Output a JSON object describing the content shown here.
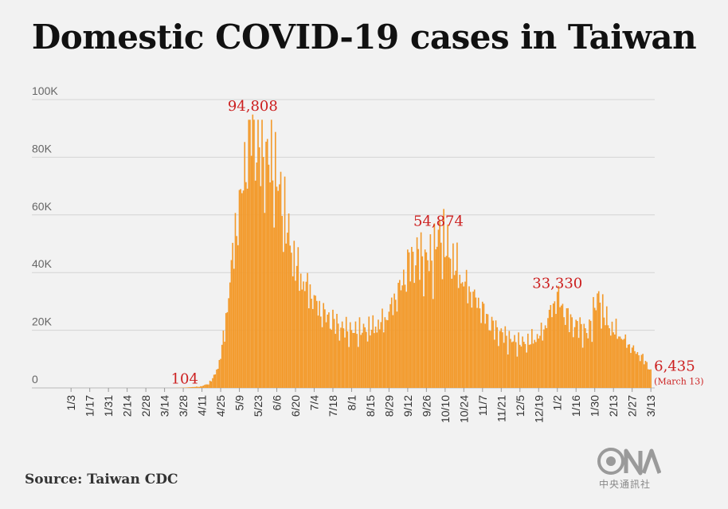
{
  "title": "Domestic COVID-19 cases in Taiwan",
  "source": "Source: Taiwan CDC",
  "logo_caption": "中央通訊社",
  "colors": {
    "bar": "#f39a2b",
    "annotation": "#cc1f1f",
    "grid": "#d4d4d4",
    "axis_text": "#666666",
    "background": "#f2f2f2"
  },
  "chart_data": {
    "type": "bar",
    "title": "Domestic COVID-19 cases in Taiwan",
    "xlabel": "",
    "ylabel": "",
    "ylim": [
      0,
      100000
    ],
    "y_ticks": [
      0,
      20000,
      40000,
      60000,
      80000,
      100000
    ],
    "y_tick_labels": [
      "0",
      "20K",
      "40K",
      "60K",
      "80K",
      "100K"
    ],
    "grid": true,
    "legend": "none",
    "x_start_date": "1/1",
    "days": 437,
    "x_ticks": [
      {
        "label": "1/3",
        "day": 3
      },
      {
        "label": "1/17",
        "day": 17
      },
      {
        "label": "1/31",
        "day": 31
      },
      {
        "label": "2/14",
        "day": 45
      },
      {
        "label": "2/28",
        "day": 59
      },
      {
        "label": "3/14",
        "day": 73
      },
      {
        "label": "3/28",
        "day": 87
      },
      {
        "label": "4/11",
        "day": 101
      },
      {
        "label": "4/25",
        "day": 115
      },
      {
        "label": "5/9",
        "day": 129
      },
      {
        "label": "5/23",
        "day": 143
      },
      {
        "label": "6/6",
        "day": 157
      },
      {
        "label": "6/20",
        "day": 171
      },
      {
        "label": "7/4",
        "day": 185
      },
      {
        "label": "7/18",
        "day": 199
      },
      {
        "label": "8/1",
        "day": 213
      },
      {
        "label": "8/15",
        "day": 227
      },
      {
        "label": "8/29",
        "day": 241
      },
      {
        "label": "9/12",
        "day": 255
      },
      {
        "label": "9/26",
        "day": 269
      },
      {
        "label": "10/10",
        "day": 283
      },
      {
        "label": "10/24",
        "day": 297
      },
      {
        "label": "11/7",
        "day": 311
      },
      {
        "label": "11/21",
        "day": 325
      },
      {
        "label": "12/5",
        "day": 339
      },
      {
        "label": "12/19",
        "day": 353
      },
      {
        "label": "1/2",
        "day": 367
      },
      {
        "label": "1/16",
        "day": 381
      },
      {
        "label": "1/30",
        "day": 395
      },
      {
        "label": "2/13",
        "day": 409
      },
      {
        "label": "2/27",
        "day": 423
      },
      {
        "label": "3/13",
        "day": 437
      }
    ],
    "anchors": [
      [
        1,
        0
      ],
      [
        80,
        0
      ],
      [
        88,
        104
      ],
      [
        100,
        500
      ],
      [
        106,
        1500
      ],
      [
        110,
        4000
      ],
      [
        114,
        9000
      ],
      [
        118,
        20000
      ],
      [
        122,
        38000
      ],
      [
        126,
        55000
      ],
      [
        130,
        66000
      ],
      [
        134,
        82000
      ],
      [
        136,
        90000
      ],
      [
        139,
        94808
      ],
      [
        143,
        85000
      ],
      [
        149,
        82000
      ],
      [
        155,
        78000
      ],
      [
        160,
        68000
      ],
      [
        165,
        56000
      ],
      [
        170,
        45000
      ],
      [
        176,
        38000
      ],
      [
        183,
        33000
      ],
      [
        190,
        27000
      ],
      [
        198,
        24000
      ],
      [
        206,
        21000
      ],
      [
        214,
        20000
      ],
      [
        222,
        20500
      ],
      [
        230,
        21500
      ],
      [
        238,
        24000
      ],
      [
        244,
        30000
      ],
      [
        250,
        36000
      ],
      [
        256,
        44000
      ],
      [
        262,
        47000
      ],
      [
        268,
        45000
      ],
      [
        274,
        46000
      ],
      [
        278,
        54874
      ],
      [
        284,
        50000
      ],
      [
        290,
        44000
      ],
      [
        296,
        38000
      ],
      [
        302,
        34000
      ],
      [
        308,
        30000
      ],
      [
        314,
        25000
      ],
      [
        320,
        21000
      ],
      [
        326,
        19000
      ],
      [
        332,
        17000
      ],
      [
        338,
        16000
      ],
      [
        344,
        16000
      ],
      [
        350,
        17500
      ],
      [
        356,
        19500
      ],
      [
        361,
        26000
      ],
      [
        364,
        29000
      ],
      [
        367,
        33330
      ],
      [
        371,
        28000
      ],
      [
        376,
        24000
      ],
      [
        381,
        22000
      ],
      [
        386,
        21000
      ],
      [
        390,
        19000
      ],
      [
        393,
        25000
      ],
      [
        396,
        30000
      ],
      [
        398,
        32000
      ],
      [
        402,
        26000
      ],
      [
        406,
        22000
      ],
      [
        412,
        19500
      ],
      [
        418,
        16500
      ],
      [
        424,
        13500
      ],
      [
        430,
        11000
      ],
      [
        434,
        8500
      ],
      [
        437,
        6435
      ]
    ],
    "annotations": [
      {
        "text": "104",
        "day": 88,
        "value": 104
      },
      {
        "text": "94,808",
        "day": 139,
        "value": 94808
      },
      {
        "text": "54,874",
        "day": 278,
        "value": 54874
      },
      {
        "text": "33,330",
        "day": 367,
        "value": 33330
      },
      {
        "text": "6,435",
        "sub": "(March 13)",
        "day": 437,
        "value": 6435
      }
    ]
  }
}
